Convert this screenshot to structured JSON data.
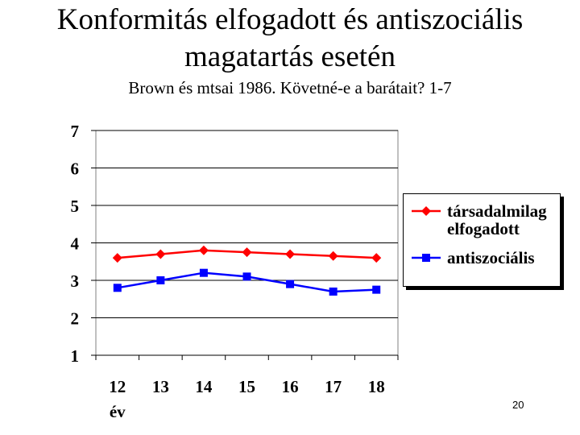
{
  "slide": {
    "title_line1": "Konformitás elfogadott és antiszociális",
    "title_line2": "magatartás esetén",
    "subtitle": "Brown és mtsai 1986. Követné-e a barátait? 1-7",
    "page_number": "20"
  },
  "chart_data": {
    "type": "line",
    "title": "",
    "xlabel": "év",
    "ylabel": "",
    "categories": [
      "12",
      "13",
      "14",
      "15",
      "16",
      "17",
      "18"
    ],
    "ylim": [
      1,
      7
    ],
    "yticks": [
      "1",
      "2",
      "3",
      "4",
      "5",
      "6",
      "7"
    ],
    "grid": true,
    "legend_position": "right",
    "series": [
      {
        "name": "társadalmilag elfogadott",
        "color": "#ff0000",
        "marker": "diamond",
        "values": [
          3.6,
          3.7,
          3.8,
          3.75,
          3.7,
          3.65,
          3.6
        ]
      },
      {
        "name": "antiszociális",
        "color": "#0000ff",
        "marker": "square",
        "values": [
          2.8,
          3.0,
          3.2,
          3.1,
          2.9,
          2.7,
          2.75
        ]
      }
    ]
  }
}
